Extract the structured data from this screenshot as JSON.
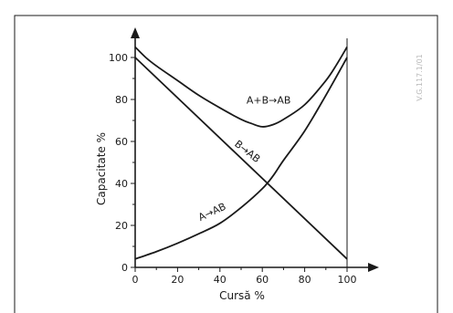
{
  "watermark": "V.G.117.1/01",
  "chart_data": {
    "type": "line",
    "title": "",
    "xlabel": "Cursă  %",
    "ylabel": "Capacitate  %",
    "xlim": [
      0,
      100
    ],
    "ylim": [
      0,
      110
    ],
    "x_ticks": [
      0,
      20,
      40,
      60,
      80,
      100
    ],
    "y_ticks": [
      0,
      20,
      40,
      60,
      80,
      100
    ],
    "grid": false,
    "legend": "none",
    "series": [
      {
        "name": "A+B→AB",
        "x": [
          0,
          5,
          10,
          20,
          30,
          40,
          50,
          55,
          60,
          65,
          70,
          80,
          90,
          95,
          100
        ],
        "y": [
          105,
          100,
          96,
          89,
          82,
          76,
          70.5,
          68.5,
          67,
          68,
          70.5,
          77.5,
          89,
          96.5,
          105
        ]
      },
      {
        "name": "B→AB",
        "x": [
          0,
          100
        ],
        "y": [
          100,
          4
        ]
      },
      {
        "name": "A→AB",
        "x": [
          0,
          10,
          20,
          30,
          40,
          50,
          60,
          65,
          70,
          80,
          90,
          100
        ],
        "y": [
          4,
          7.5,
          11.5,
          16,
          21,
          28.5,
          37.5,
          43.5,
          51,
          65,
          82,
          100
        ]
      }
    ],
    "annotations": [
      {
        "text": "A+B→AB",
        "series": 0
      },
      {
        "text": "B→AB",
        "series": 1
      },
      {
        "text": "A→AB",
        "series": 2
      }
    ],
    "colors": {
      "line": "#1a1a1a",
      "axis": "#1a1a1a",
      "frame": "#1a1a1a"
    }
  }
}
